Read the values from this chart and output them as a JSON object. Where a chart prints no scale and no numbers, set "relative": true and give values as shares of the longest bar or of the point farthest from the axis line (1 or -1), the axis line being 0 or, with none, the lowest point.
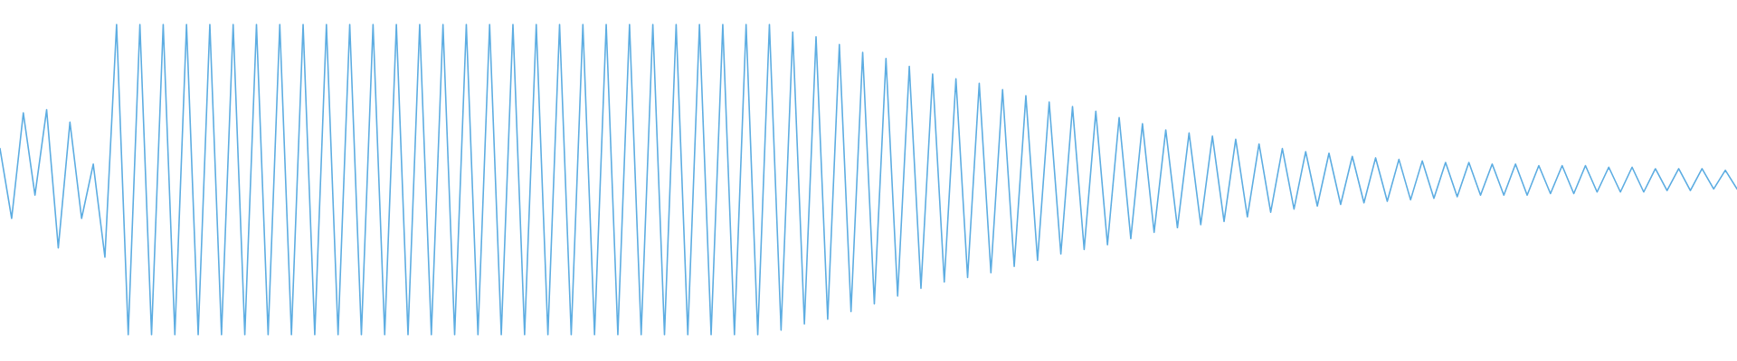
{
  "chart_data": {
    "type": "line",
    "relative": true,
    "marker": "none",
    "line_style": "solid",
    "grid": false,
    "tick_labels": false,
    "categories": [
      null,
      null,
      null,
      null,
      null,
      null,
      null,
      null,
      null,
      null,
      null,
      null,
      null,
      null,
      null,
      null,
      null,
      null,
      null,
      null,
      null,
      null,
      null,
      null,
      null,
      null,
      null,
      null,
      null,
      null,
      null,
      null,
      null,
      null,
      null,
      null,
      null,
      null,
      null,
      null,
      null,
      null,
      null,
      null,
      null,
      null,
      null,
      null,
      null,
      null,
      null,
      null,
      null,
      null,
      null,
      null,
      null,
      null,
      null,
      null,
      null,
      null,
      null,
      null,
      null,
      null,
      null,
      null,
      null,
      null,
      null,
      null,
      null,
      null,
      null,
      null,
      null,
      null,
      null,
      null,
      null,
      null,
      null,
      null,
      null,
      null,
      null,
      null,
      null,
      null,
      null,
      null,
      null,
      null,
      null,
      null,
      null,
      null,
      null,
      null,
      null,
      null,
      null,
      null,
      null,
      null,
      null,
      null,
      null,
      null,
      null,
      null,
      null,
      null,
      null,
      null,
      null,
      null,
      null,
      null,
      null,
      null,
      null,
      null,
      null,
      null,
      null,
      null,
      null,
      null,
      null,
      null,
      null,
      null,
      null,
      null,
      null,
      null,
      null,
      null,
      null,
      null,
      null,
      null,
      null,
      null,
      null,
      null,
      null,
      null
    ],
    "series": [
      {
        "color": "#5dade2",
        "values": [
          0.6,
          0.375,
          0.715,
          0.45,
          0.725,
          0.28,
          0.685,
          0.375,
          0.55,
          0.25,
          1,
          0,
          1,
          0,
          1,
          0,
          1,
          0,
          1,
          0,
          1,
          0,
          1,
          0,
          1,
          0,
          1,
          0,
          1,
          0,
          1,
          0,
          1,
          0,
          1,
          0,
          1,
          0,
          1,
          0,
          1,
          0,
          1,
          0,
          1,
          0,
          1,
          0,
          1,
          0,
          1,
          0,
          1,
          0,
          1,
          0,
          1,
          0,
          1,
          0,
          1,
          0,
          1,
          0,
          1,
          0,
          1,
          0.015,
          0.975,
          0.035,
          0.96,
          0.05,
          0.935,
          0.075,
          0.91,
          0.1,
          0.89,
          0.125,
          0.865,
          0.15,
          0.84,
          0.17,
          0.825,
          0.185,
          0.81,
          0.2,
          0.79,
          0.22,
          0.77,
          0.24,
          0.75,
          0.26,
          0.735,
          0.275,
          0.72,
          0.29,
          0.7,
          0.31,
          0.68,
          0.33,
          0.66,
          0.345,
          0.65,
          0.355,
          0.64,
          0.365,
          0.63,
          0.38,
          0.615,
          0.395,
          0.6,
          0.405,
          0.59,
          0.415,
          0.585,
          0.42,
          0.575,
          0.425,
          0.57,
          0.43,
          0.565,
          0.435,
          0.56,
          0.44,
          0.555,
          0.445,
          0.555,
          0.45,
          0.55,
          0.45,
          0.55,
          0.45,
          0.545,
          0.455,
          0.545,
          0.455,
          0.545,
          0.46,
          0.54,
          0.46,
          0.54,
          0.46,
          0.535,
          0.465,
          0.535,
          0.465,
          0.535,
          0.47,
          0.53,
          0.47
        ]
      }
    ]
  }
}
